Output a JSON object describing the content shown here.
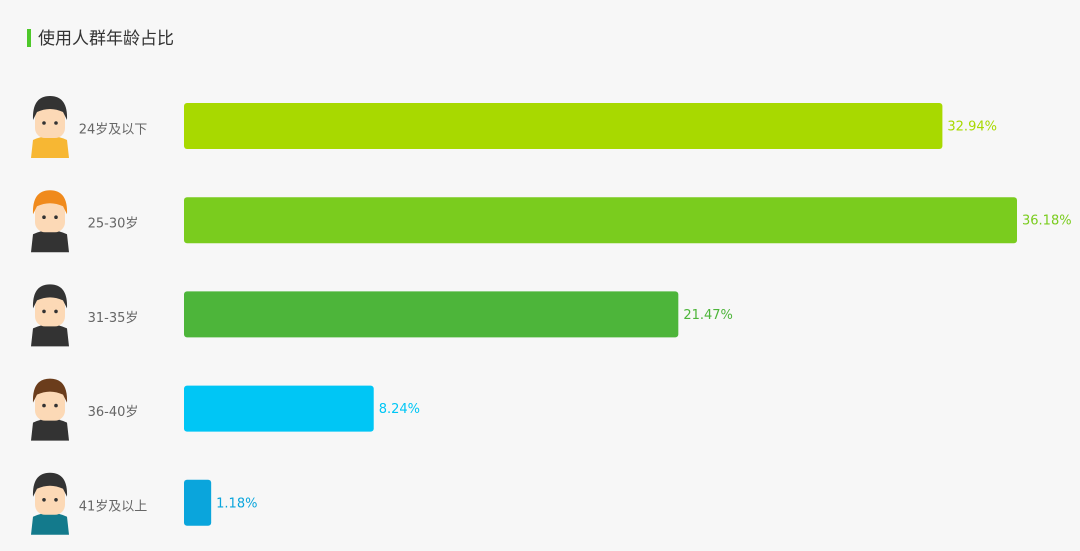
{
  "chart_data": {
    "type": "bar",
    "orientation": "horizontal",
    "title": "使用人群年龄占比",
    "categories": [
      "24岁及以下",
      "25-30岁",
      "31-35岁",
      "36-40岁",
      "41岁及以上"
    ],
    "values": [
      32.94,
      36.18,
      21.47,
      8.24,
      1.18
    ],
    "value_labels": [
      "32.94%",
      "36.18%",
      "21.47%",
      "8.24%",
      "1.18%"
    ],
    "colors": [
      "#a8d900",
      "#7acc1e",
      "#4db53a",
      "#00c6f5",
      "#0aa5dc"
    ]
  }
}
